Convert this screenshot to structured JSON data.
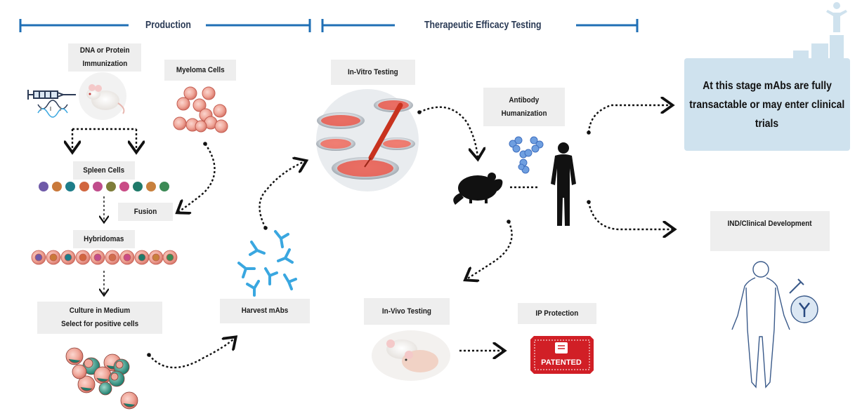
{
  "colors": {
    "accent_blue": "#1f6fb5",
    "label_bg": "#eeeeee",
    "callout_bg": "#cfe2ee",
    "antibody_blue": "#3aa7e0",
    "patent_red": "#d11f26"
  },
  "sections": {
    "production": "Production",
    "therapeutic": "Therapeutic Efficacy Testing"
  },
  "labels": {
    "dna_line1": "DNA or Protein",
    "dna_line2": "Immunization",
    "myeloma": "Myeloma Cells",
    "spleen": "Spleen Cells",
    "fusion": "Fusion",
    "hybridomas": "Hybridomas",
    "culture_line1": "Culture in Medium",
    "culture_line2": "Select for positive cells",
    "harvest": "Harvest mAbs",
    "invitro": "In-Vitro Testing",
    "humanization_line1": "Antibody",
    "humanization_line2": "Humanization",
    "invivo": "In-Vivo Testing",
    "ip": "IP Protection",
    "ind": "IND/Clinical Development"
  },
  "callout": {
    "line1": "At this stage mAbs are fully",
    "line2": "transactable or may enter clinical",
    "line3": "trials"
  },
  "patent_stamp": "PATENTED",
  "icons": [
    "syringe-icon",
    "dna-icon",
    "mouse-icon",
    "antibody-icon",
    "petri-dish-icon",
    "rat-silhouette-icon",
    "human-silhouette-icon",
    "patent-stamp-icon",
    "success-building-icon"
  ]
}
